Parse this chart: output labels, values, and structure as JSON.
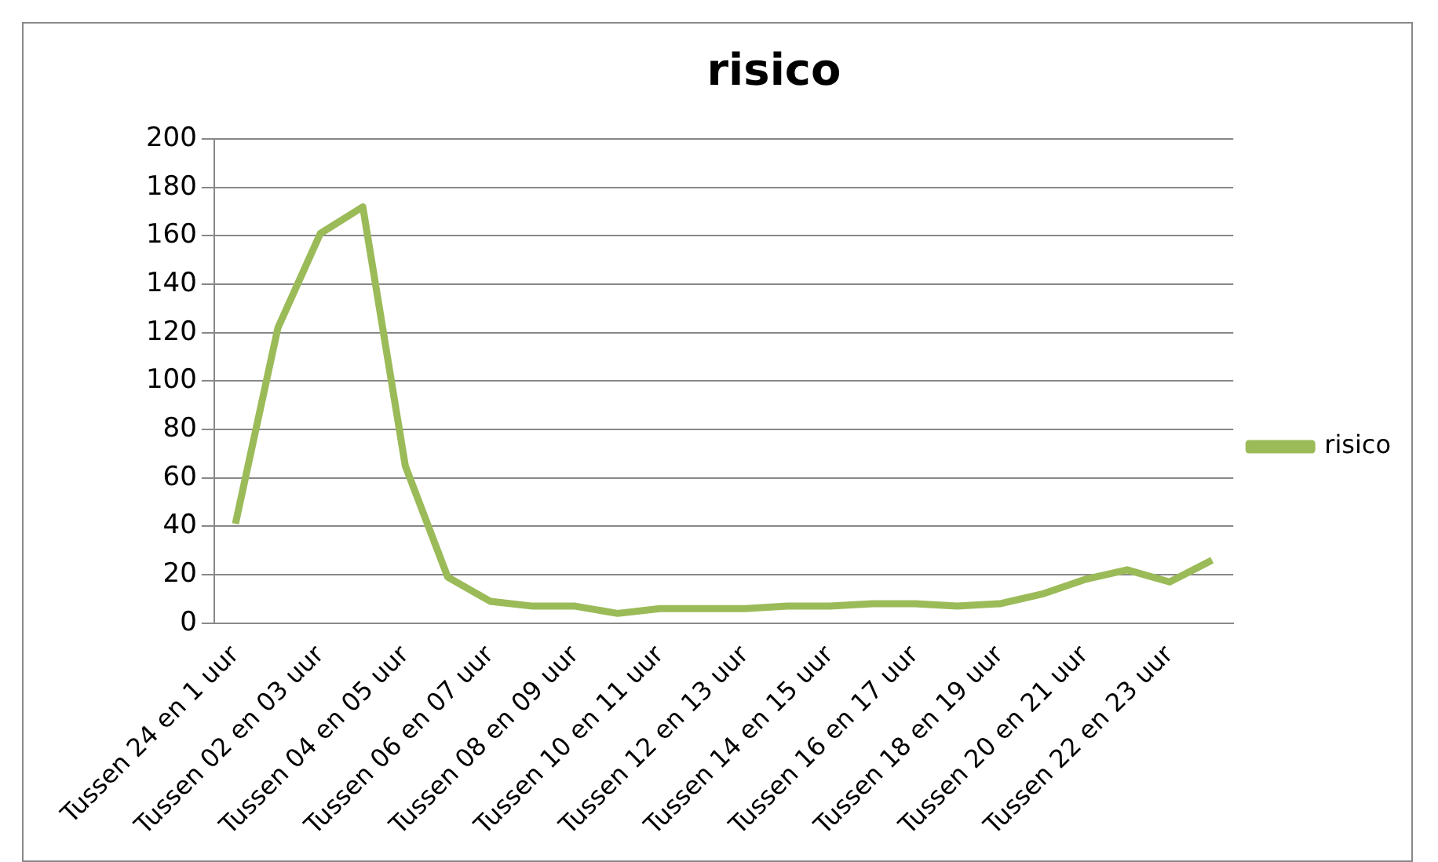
{
  "chart_data": {
    "type": "line",
    "title": "risico",
    "categories": [
      "Tussen 24 en 1 uur",
      null,
      "Tussen 02 en 03 uur",
      null,
      "Tussen 04 en 05 uur",
      null,
      "Tussen 06 en 07 uur",
      null,
      "Tussen 08 en 09 uur",
      null,
      "Tussen 10 en 11 uur",
      null,
      "Tussen 12 en 13 uur",
      null,
      "Tussen 14 en 15 uur",
      null,
      "Tussen 16 en 17 uur",
      null,
      "Tussen 18 en 19 uur",
      null,
      "Tussen 20 en 21 uur",
      null,
      "Tussen 22 en 23 uur",
      null
    ],
    "series": [
      {
        "name": "risico",
        "color": "#9bbb59",
        "values": [
          41,
          122,
          161,
          172,
          65,
          19,
          9,
          7,
          7,
          4,
          6,
          6,
          6,
          7,
          7,
          8,
          8,
          7,
          8,
          12,
          18,
          22,
          17,
          26
        ]
      }
    ],
    "ylim": [
      0,
      200
    ],
    "yticks": [
      0,
      20,
      40,
      60,
      80,
      100,
      120,
      140,
      160,
      180,
      200
    ],
    "grid": "y",
    "legend": "right",
    "marker": "none",
    "line_style": "solid"
  }
}
